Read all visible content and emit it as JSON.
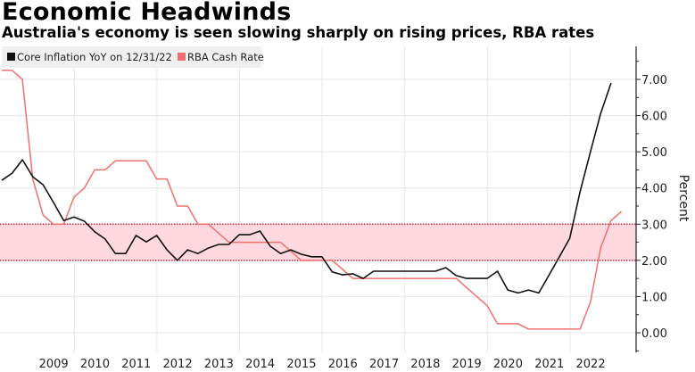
{
  "chart_data": {
    "type": "line",
    "title": "Economic Headwinds",
    "subtitle": "Australia's economy is seen slowing sharply on rising prices, RBA rates",
    "xlabel": "",
    "ylabel": "Percent",
    "ylim": [
      -0.5,
      7.8
    ],
    "y_ticks": [
      0,
      1,
      2,
      3,
      4,
      5,
      6,
      7
    ],
    "y_tick_labels": [
      "0.00",
      "1.00",
      "2.00",
      "3.00",
      "4.00",
      "5.00",
      "6.00",
      "7.00"
    ],
    "x_tick_labels": [
      "2009",
      "2010",
      "2011",
      "2012",
      "2013",
      "2014",
      "2015",
      "2016",
      "2017",
      "2018",
      "2019",
      "2020",
      "2021",
      "2022"
    ],
    "x_start": 2008.25,
    "x_step": 0.25,
    "grid": true,
    "legend_position": "top-left",
    "target_band": {
      "low": 2.0,
      "high": 3.0,
      "color": "#ffd9df",
      "line_color": "#c8324a"
    },
    "series": [
      {
        "name": "Core Inflation YoY on 12/31/22",
        "color": "#111111",
        "values": [
          4.21,
          4.41,
          4.78,
          4.31,
          4.09,
          3.6,
          3.1,
          3.2,
          3.08,
          2.79,
          2.59,
          2.19,
          2.19,
          2.69,
          2.51,
          2.69,
          2.29,
          2.0,
          2.29,
          2.19,
          2.34,
          2.44,
          2.44,
          2.71,
          2.71,
          2.81,
          2.39,
          2.19,
          2.29,
          2.17,
          2.1,
          2.1,
          1.68,
          1.6,
          1.63,
          1.5,
          1.7,
          1.7,
          1.7,
          1.7,
          1.7,
          1.7,
          1.7,
          1.8,
          1.58,
          1.5,
          1.5,
          1.5,
          1.7,
          1.18,
          1.1,
          1.18,
          1.1,
          1.6,
          2.1,
          2.61,
          3.9,
          5.0,
          6.06,
          6.9
        ]
      },
      {
        "name": "RBA Cash Rate",
        "color": "#f07070",
        "values": [
          7.25,
          7.25,
          7.0,
          4.25,
          3.25,
          3.0,
          3.0,
          3.75,
          4.0,
          4.5,
          4.5,
          4.75,
          4.75,
          4.75,
          4.75,
          4.25,
          4.25,
          3.5,
          3.5,
          3.0,
          3.0,
          2.75,
          2.5,
          2.5,
          2.5,
          2.5,
          2.5,
          2.5,
          2.25,
          2.0,
          2.0,
          2.0,
          2.0,
          1.75,
          1.5,
          1.5,
          1.5,
          1.5,
          1.5,
          1.5,
          1.5,
          1.5,
          1.5,
          1.5,
          1.5,
          1.25,
          1.0,
          0.75,
          0.25,
          0.25,
          0.25,
          0.1,
          0.1,
          0.1,
          0.1,
          0.1,
          0.1,
          0.85,
          2.35,
          3.1,
          3.35
        ]
      }
    ]
  }
}
